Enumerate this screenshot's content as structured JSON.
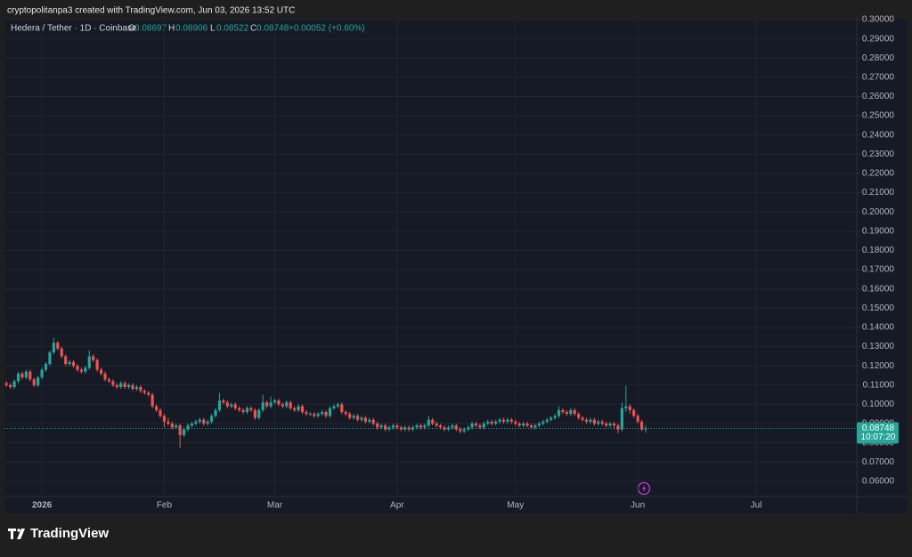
{
  "header": {
    "credit": "cryptopolitanpa3 created with TradingView.com, Jun 03, 2026 13:52 UTC"
  },
  "legend": {
    "symbol": "Hedera / Tether · 1D · Coinbase",
    "o": "O",
    "open": "0.08697",
    "h": "H",
    "high": "0.08906",
    "l": "L",
    "low": "0.08522",
    "c": "C",
    "close": "0.08748",
    "change": "+0.00052 (+0.60%)"
  },
  "price_badge": {
    "countdown": "10:07:20"
  },
  "footer": {
    "brand": "TradingView"
  },
  "chart_data": {
    "type": "candlestick",
    "up_color": "#26a69a",
    "down_color": "#ef5350",
    "grid": true,
    "ylim": [
      0.0521,
      0.3
    ],
    "yticks": [
      {
        "value": 0.3,
        "label": "0.30000"
      },
      {
        "value": 0.29,
        "label": "0.29000"
      },
      {
        "value": 0.28,
        "label": "0.28000"
      },
      {
        "value": 0.27,
        "label": "0.27000"
      },
      {
        "value": 0.26,
        "label": "0.26000"
      },
      {
        "value": 0.25,
        "label": "0.25000"
      },
      {
        "value": 0.24,
        "label": "0.24000"
      },
      {
        "value": 0.23,
        "label": "0.23000"
      },
      {
        "value": 0.22,
        "label": "0.22000"
      },
      {
        "value": 0.21,
        "label": "0.21000"
      },
      {
        "value": 0.2,
        "label": "0.20000"
      },
      {
        "value": 0.19,
        "label": "0.19000"
      },
      {
        "value": 0.18,
        "label": "0.18000"
      },
      {
        "value": 0.17,
        "label": "0.17000"
      },
      {
        "value": 0.16,
        "label": "0.16000"
      },
      {
        "value": 0.15,
        "label": "0.15000"
      },
      {
        "value": 0.14,
        "label": "0.14000"
      },
      {
        "value": 0.13,
        "label": "0.13000"
      },
      {
        "value": 0.12,
        "label": "0.12000"
      },
      {
        "value": 0.11,
        "label": "0.11000"
      },
      {
        "value": 0.1,
        "label": "0.10000"
      },
      {
        "value": 0.09,
        "label": "0.09000"
      },
      {
        "value": 0.08,
        "label": "0.08000"
      },
      {
        "value": 0.07,
        "label": "0.07000"
      },
      {
        "value": 0.06,
        "label": "0.06000"
      }
    ],
    "categories": [
      null,
      null,
      null,
      null,
      null,
      null,
      null,
      null,
      null,
      "2026",
      null,
      null,
      null,
      null,
      null,
      null,
      null,
      null,
      null,
      null,
      null,
      null,
      null,
      null,
      null,
      null,
      null,
      null,
      null,
      null,
      null,
      null,
      null,
      null,
      null,
      null,
      null,
      null,
      null,
      null,
      "Feb",
      null,
      null,
      null,
      null,
      null,
      null,
      null,
      null,
      null,
      null,
      null,
      null,
      null,
      null,
      null,
      null,
      null,
      null,
      null,
      null,
      null,
      null,
      null,
      null,
      null,
      null,
      null,
      "Mar",
      null,
      null,
      null,
      null,
      null,
      null,
      null,
      null,
      null,
      null,
      null,
      null,
      null,
      null,
      null,
      null,
      null,
      null,
      null,
      null,
      null,
      null,
      null,
      null,
      null,
      null,
      null,
      null,
      null,
      null,
      "Apr",
      null,
      null,
      null,
      null,
      null,
      null,
      null,
      null,
      null,
      null,
      null,
      null,
      null,
      null,
      null,
      null,
      null,
      null,
      null,
      null,
      null,
      null,
      null,
      null,
      null,
      null,
      null,
      null,
      null,
      "May",
      null,
      null,
      null,
      null,
      null,
      null,
      null,
      null,
      null,
      null,
      null,
      null,
      null,
      null,
      null,
      null,
      null,
      null,
      null,
      null,
      null,
      null,
      null,
      null,
      null,
      null,
      null,
      null,
      null,
      null,
      "Jun",
      null,
      null,
      null,
      null,
      null,
      null,
      null,
      null,
      null,
      null,
      null,
      null,
      null,
      null,
      null,
      null,
      null,
      null,
      null,
      null,
      null,
      null,
      null,
      null,
      null,
      null,
      null,
      null,
      null,
      "Jul",
      null,
      null,
      null,
      null,
      null,
      null,
      null,
      null,
      null,
      null,
      null,
      null,
      null,
      null,
      null,
      null,
      null,
      null,
      null,
      null,
      null,
      null,
      null,
      null,
      null
    ],
    "candles": [
      [
        0.111,
        0.112,
        0.109,
        0.11
      ],
      [
        0.11,
        0.111,
        0.108,
        0.109
      ],
      [
        0.109,
        0.113,
        0.108,
        0.112
      ],
      [
        0.112,
        0.117,
        0.111,
        0.116
      ],
      [
        0.116,
        0.117,
        0.113,
        0.114
      ],
      [
        0.114,
        0.118,
        0.113,
        0.117
      ],
      [
        0.117,
        0.118,
        0.112,
        0.113
      ],
      [
        0.113,
        0.114,
        0.109,
        0.11
      ],
      [
        0.11,
        0.115,
        0.109,
        0.114
      ],
      [
        0.114,
        0.119,
        0.113,
        0.118
      ],
      [
        0.118,
        0.122,
        0.117,
        0.121
      ],
      [
        0.121,
        0.128,
        0.12,
        0.127
      ],
      [
        0.127,
        0.1345,
        0.126,
        0.132
      ],
      [
        0.132,
        0.133,
        0.128,
        0.129
      ],
      [
        0.129,
        0.13,
        0.124,
        0.125
      ],
      [
        0.125,
        0.126,
        0.12,
        0.121
      ],
      [
        0.121,
        0.123,
        0.12,
        0.122
      ],
      [
        0.122,
        0.123,
        0.119,
        0.12
      ],
      [
        0.12,
        0.121,
        0.117,
        0.118
      ],
      [
        0.118,
        0.119,
        0.116,
        0.117
      ],
      [
        0.117,
        0.12,
        0.116,
        0.119
      ],
      [
        0.119,
        0.128,
        0.118,
        0.125
      ],
      [
        0.125,
        0.126,
        0.122,
        0.123
      ],
      [
        0.123,
        0.124,
        0.117,
        0.118
      ],
      [
        0.118,
        0.119,
        0.115,
        0.116
      ],
      [
        0.116,
        0.117,
        0.112,
        0.113
      ],
      [
        0.113,
        0.114,
        0.111,
        0.112
      ],
      [
        0.112,
        0.113,
        0.109,
        0.11
      ],
      [
        0.11,
        0.111,
        0.108,
        0.109
      ],
      [
        0.109,
        0.112,
        0.108,
        0.111
      ],
      [
        0.111,
        0.112,
        0.108,
        0.109
      ],
      [
        0.109,
        0.111,
        0.108,
        0.11
      ],
      [
        0.11,
        0.111,
        0.107,
        0.108
      ],
      [
        0.108,
        0.11,
        0.107,
        0.109
      ],
      [
        0.109,
        0.11,
        0.106,
        0.107
      ],
      [
        0.107,
        0.108,
        0.105,
        0.106
      ],
      [
        0.106,
        0.107,
        0.104,
        0.105
      ],
      [
        0.105,
        0.106,
        0.098,
        0.099
      ],
      [
        0.099,
        0.1,
        0.096,
        0.097
      ],
      [
        0.097,
        0.098,
        0.093,
        0.094
      ],
      [
        0.094,
        0.095,
        0.088,
        0.091
      ],
      [
        0.091,
        0.093,
        0.089,
        0.09
      ],
      [
        0.09,
        0.091,
        0.087,
        0.088
      ],
      [
        0.088,
        0.09,
        0.087,
        0.089
      ],
      [
        0.089,
        0.09,
        0.0773,
        0.084
      ],
      [
        0.084,
        0.088,
        0.083,
        0.087
      ],
      [
        0.087,
        0.09,
        0.086,
        0.089
      ],
      [
        0.089,
        0.091,
        0.088,
        0.09
      ],
      [
        0.09,
        0.092,
        0.089,
        0.091
      ],
      [
        0.091,
        0.093,
        0.09,
        0.092
      ],
      [
        0.092,
        0.093,
        0.089,
        0.09
      ],
      [
        0.09,
        0.092,
        0.089,
        0.091
      ],
      [
        0.091,
        0.095,
        0.09,
        0.094
      ],
      [
        0.094,
        0.098,
        0.093,
        0.097
      ],
      [
        0.097,
        0.106,
        0.096,
        0.102
      ],
      [
        0.102,
        0.103,
        0.1,
        0.101
      ],
      [
        0.101,
        0.102,
        0.098,
        0.099
      ],
      [
        0.099,
        0.101,
        0.098,
        0.1
      ],
      [
        0.1,
        0.101,
        0.097,
        0.098
      ],
      [
        0.098,
        0.099,
        0.096,
        0.097
      ],
      [
        0.097,
        0.098,
        0.095,
        0.096
      ],
      [
        0.096,
        0.099,
        0.095,
        0.098
      ],
      [
        0.098,
        0.099,
        0.096,
        0.097
      ],
      [
        0.097,
        0.098,
        0.092,
        0.093
      ],
      [
        0.093,
        0.098,
        0.092,
        0.097
      ],
      [
        0.097,
        0.105,
        0.096,
        0.101
      ],
      [
        0.101,
        0.102,
        0.098,
        0.099
      ],
      [
        0.099,
        0.104,
        0.098,
        0.101
      ],
      [
        0.101,
        0.103,
        0.1,
        0.102
      ],
      [
        0.102,
        0.103,
        0.099,
        0.1
      ],
      [
        0.1,
        0.101,
        0.098,
        0.099
      ],
      [
        0.099,
        0.102,
        0.098,
        0.101
      ],
      [
        0.101,
        0.102,
        0.097,
        0.098
      ],
      [
        0.098,
        0.099,
        0.096,
        0.097
      ],
      [
        0.097,
        0.1,
        0.096,
        0.099
      ],
      [
        0.099,
        0.1,
        0.095,
        0.096
      ],
      [
        0.096,
        0.097,
        0.094,
        0.095
      ],
      [
        0.095,
        0.096,
        0.094,
        0.095
      ],
      [
        0.095,
        0.096,
        0.093,
        0.094
      ],
      [
        0.094,
        0.096,
        0.093,
        0.095
      ],
      [
        0.095,
        0.097,
        0.094,
        0.096
      ],
      [
        0.096,
        0.097,
        0.093,
        0.094
      ],
      [
        0.094,
        0.099,
        0.093,
        0.098
      ],
      [
        0.098,
        0.1,
        0.097,
        0.099
      ],
      [
        0.099,
        0.101,
        0.098,
        0.1
      ],
      [
        0.1,
        0.101,
        0.095,
        0.096
      ],
      [
        0.096,
        0.097,
        0.094,
        0.095
      ],
      [
        0.095,
        0.096,
        0.092,
        0.093
      ],
      [
        0.093,
        0.095,
        0.092,
        0.094
      ],
      [
        0.094,
        0.095,
        0.091,
        0.092
      ],
      [
        0.092,
        0.094,
        0.091,
        0.093
      ],
      [
        0.093,
        0.094,
        0.09,
        0.091
      ],
      [
        0.091,
        0.093,
        0.09,
        0.092
      ],
      [
        0.092,
        0.093,
        0.089,
        0.09
      ],
      [
        0.09,
        0.091,
        0.087,
        0.088
      ],
      [
        0.088,
        0.09,
        0.087,
        0.089
      ],
      [
        0.089,
        0.09,
        0.086,
        0.087
      ],
      [
        0.087,
        0.089,
        0.086,
        0.088
      ],
      [
        0.088,
        0.09,
        0.087,
        0.089
      ],
      [
        0.089,
        0.09,
        0.087,
        0.088
      ],
      [
        0.088,
        0.089,
        0.086,
        0.087
      ],
      [
        0.087,
        0.089,
        0.086,
        0.088
      ],
      [
        0.088,
        0.089,
        0.086,
        0.087
      ],
      [
        0.087,
        0.089,
        0.086,
        0.088
      ],
      [
        0.088,
        0.09,
        0.087,
        0.089
      ],
      [
        0.089,
        0.09,
        0.087,
        0.088
      ],
      [
        0.088,
        0.09,
        0.087,
        0.089
      ],
      [
        0.089,
        0.094,
        0.088,
        0.092
      ],
      [
        0.092,
        0.093,
        0.089,
        0.09
      ],
      [
        0.09,
        0.091,
        0.088,
        0.089
      ],
      [
        0.089,
        0.09,
        0.087,
        0.088
      ],
      [
        0.088,
        0.089,
        0.086,
        0.087
      ],
      [
        0.087,
        0.089,
        0.086,
        0.088
      ],
      [
        0.088,
        0.09,
        0.087,
        0.089
      ],
      [
        0.089,
        0.09,
        0.086,
        0.087
      ],
      [
        0.087,
        0.088,
        0.085,
        0.086
      ],
      [
        0.086,
        0.088,
        0.085,
        0.087
      ],
      [
        0.087,
        0.089,
        0.086,
        0.088
      ],
      [
        0.088,
        0.091,
        0.087,
        0.09
      ],
      [
        0.09,
        0.091,
        0.088,
        0.089
      ],
      [
        0.089,
        0.09,
        0.087,
        0.088
      ],
      [
        0.088,
        0.091,
        0.087,
        0.09
      ],
      [
        0.09,
        0.092,
        0.089,
        0.091
      ],
      [
        0.091,
        0.092,
        0.089,
        0.09
      ],
      [
        0.09,
        0.092,
        0.089,
        0.091
      ],
      [
        0.091,
        0.093,
        0.09,
        0.092
      ],
      [
        0.092,
        0.093,
        0.09,
        0.091
      ],
      [
        0.091,
        0.093,
        0.09,
        0.092
      ],
      [
        0.092,
        0.093,
        0.09,
        0.091
      ],
      [
        0.091,
        0.092,
        0.089,
        0.09
      ],
      [
        0.09,
        0.091,
        0.088,
        0.089
      ],
      [
        0.089,
        0.091,
        0.088,
        0.09
      ],
      [
        0.09,
        0.091,
        0.088,
        0.089
      ],
      [
        0.089,
        0.09,
        0.087,
        0.088
      ],
      [
        0.088,
        0.09,
        0.087,
        0.089
      ],
      [
        0.089,
        0.091,
        0.088,
        0.09
      ],
      [
        0.09,
        0.092,
        0.089,
        0.091
      ],
      [
        0.091,
        0.093,
        0.09,
        0.092
      ],
      [
        0.092,
        0.094,
        0.091,
        0.093
      ],
      [
        0.093,
        0.095,
        0.092,
        0.094
      ],
      [
        0.094,
        0.099,
        0.093,
        0.097
      ],
      [
        0.097,
        0.098,
        0.095,
        0.096
      ],
      [
        0.096,
        0.097,
        0.094,
        0.095
      ],
      [
        0.095,
        0.098,
        0.094,
        0.097
      ],
      [
        0.097,
        0.098,
        0.094,
        0.095
      ],
      [
        0.095,
        0.096,
        0.092,
        0.093
      ],
      [
        0.093,
        0.094,
        0.091,
        0.092
      ],
      [
        0.092,
        0.093,
        0.09,
        0.091
      ],
      [
        0.091,
        0.093,
        0.09,
        0.092
      ],
      [
        0.092,
        0.093,
        0.089,
        0.09
      ],
      [
        0.09,
        0.092,
        0.089,
        0.091
      ],
      [
        0.091,
        0.092,
        0.089,
        0.09
      ],
      [
        0.09,
        0.091,
        0.088,
        0.089
      ],
      [
        0.089,
        0.091,
        0.088,
        0.09
      ],
      [
        0.09,
        0.091,
        0.087,
        0.089
      ],
      [
        0.089,
        0.09,
        0.085,
        0.087
      ],
      [
        0.087,
        0.101,
        0.086,
        0.098
      ],
      [
        0.098,
        0.1097,
        0.096,
        0.099
      ],
      [
        0.099,
        0.1,
        0.095,
        0.097
      ],
      [
        0.097,
        0.098,
        0.093,
        0.094
      ],
      [
        0.094,
        0.095,
        0.09,
        0.091
      ],
      [
        0.091,
        0.092,
        0.086,
        0.08697
      ],
      [
        0.08697,
        0.08906,
        0.08522,
        0.08748
      ],
      null,
      null,
      null,
      null,
      null,
      null,
      null,
      null,
      null,
      null,
      null,
      null,
      null,
      null,
      null,
      null,
      null,
      null,
      null,
      null,
      null,
      null,
      null,
      null,
      null,
      null,
      null,
      null,
      null,
      null,
      null,
      null,
      null,
      null,
      null,
      null,
      null,
      null,
      null,
      null,
      null,
      null,
      null,
      null,
      null,
      null,
      null,
      null,
      null,
      null,
      null,
      null,
      null
    ]
  }
}
